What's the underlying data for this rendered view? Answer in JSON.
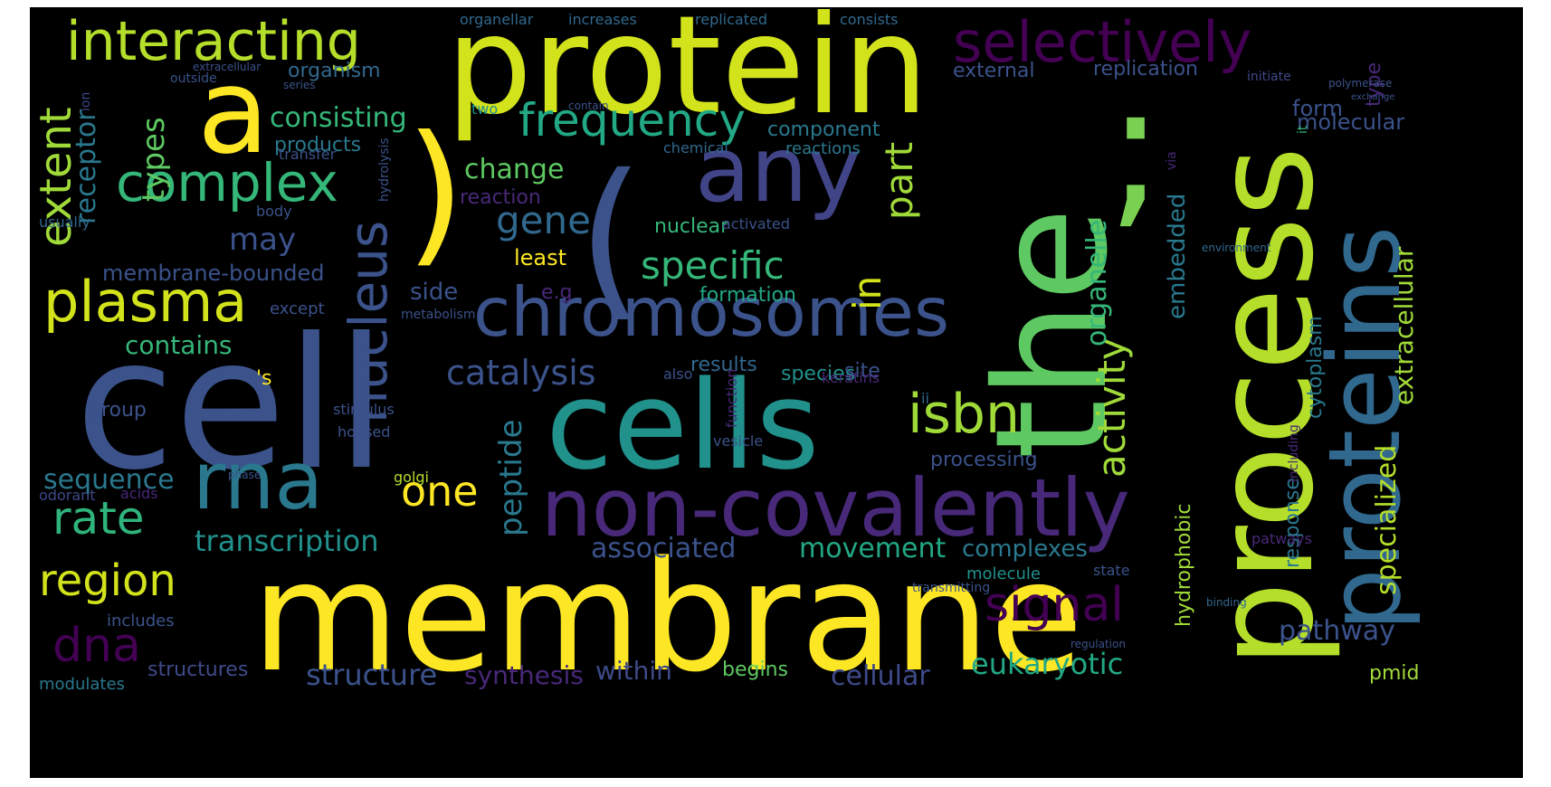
{
  "cloud": {
    "palette": {
      "yellow": "#FDE725",
      "lime": "#B5DE2B",
      "green": "#5EC962",
      "teal": "#21918C",
      "steel": "#3B528B",
      "indigo": "#443A83",
      "purple": "#440154"
    },
    "words": [
      {
        "text": "membrane",
        "color": "#FDE725"
      },
      {
        "text": "cell",
        "color": "#3B528B"
      },
      {
        "text": "protein",
        "color": "#D2E21B"
      },
      {
        "text": "process",
        "color": "#B5DE2B"
      },
      {
        "text": "the",
        "color": "#5EC962"
      },
      {
        "text": "cells",
        "color": "#21918C"
      },
      {
        "text": "proteins",
        "color": "#31688E"
      },
      {
        "text": "non-covalently",
        "color": "#482878"
      },
      {
        "text": "chromosomes",
        "color": "#3B528B"
      },
      {
        "text": "a",
        "color": "#FDE725"
      },
      {
        "text": "any",
        "color": "#414487"
      },
      {
        "text": "rna",
        "color": "#2A788E"
      },
      {
        "text": "selectively",
        "color": "#440154"
      },
      {
        "text": "interacting",
        "color": "#B5DE2B"
      },
      {
        "text": "plasma",
        "color": "#D2E21B"
      },
      {
        "text": "complex",
        "color": "#35B779"
      },
      {
        "text": "nucleus",
        "color": "#3B528B"
      },
      {
        "text": "(",
        "color": "#3B528B"
      },
      {
        "text": ")",
        "color": "#FDE725"
      },
      {
        "text": ";",
        "color": "#7AD151"
      },
      {
        "text": "isbn",
        "color": "#A0DA39"
      },
      {
        "text": "frequency",
        "color": "#22A884"
      },
      {
        "text": "signal",
        "color": "#440154"
      },
      {
        "text": "dna",
        "color": "#440154"
      },
      {
        "text": "region",
        "color": "#D2E21B"
      },
      {
        "text": "rate",
        "color": "#2FB47C"
      },
      {
        "text": "one",
        "color": "#FDE725"
      },
      {
        "text": "extent",
        "color": "#A0DA39"
      },
      {
        "text": "gene",
        "color": "#31688E"
      },
      {
        "text": "specific",
        "color": "#35B779"
      },
      {
        "text": "catalysis",
        "color": "#3B528B"
      },
      {
        "text": "activity",
        "color": "#A0DA39"
      },
      {
        "text": "part",
        "color": "#A0DA39"
      },
      {
        "text": "in",
        "color": "#D2E21B"
      },
      {
        "text": "transcription",
        "color": "#21918C"
      },
      {
        "text": "associated",
        "color": "#3B528B"
      },
      {
        "text": "movement",
        "color": "#22A884"
      },
      {
        "text": "complexes",
        "color": "#2A788E"
      },
      {
        "text": "structure",
        "color": "#3B528B"
      },
      {
        "text": "synthesis",
        "color": "#482878"
      },
      {
        "text": "within",
        "color": "#3E4A89"
      },
      {
        "text": "cellular",
        "color": "#3E4A89"
      },
      {
        "text": "eukaryotic",
        "color": "#22A884"
      },
      {
        "text": "pathway",
        "color": "#3B528B"
      },
      {
        "text": "peptide",
        "color": "#2A788E"
      },
      {
        "text": "sequence",
        "color": "#2A788E"
      },
      {
        "text": "change",
        "color": "#5EC962"
      },
      {
        "text": "may",
        "color": "#3B528B"
      },
      {
        "text": "consisting",
        "color": "#35B779"
      },
      {
        "text": "types",
        "color": "#5EC962"
      },
      {
        "text": "receptor",
        "color": "#2A788E"
      },
      {
        "text": "membrane-bounded",
        "color": "#3B528B"
      },
      {
        "text": "contains",
        "color": "#35B779"
      },
      {
        "text": "products",
        "color": "#2A788E"
      },
      {
        "text": "component",
        "color": "#2A788E"
      },
      {
        "text": "reactions",
        "color": "#2A788E"
      },
      {
        "text": "formation",
        "color": "#22A884"
      },
      {
        "text": "nuclear",
        "color": "#35B779"
      },
      {
        "text": "least",
        "color": "#FDE725"
      },
      {
        "text": "side",
        "color": "#3B528B"
      },
      {
        "text": "reaction",
        "color": "#482878"
      },
      {
        "text": "organelle",
        "color": "#35B779"
      },
      {
        "text": "embedded",
        "color": "#2A788E"
      },
      {
        "text": "specialized",
        "color": "#B5DE2B"
      },
      {
        "text": "extracellular",
        "color": "#A0DA39"
      },
      {
        "text": "response",
        "color": "#2A788E"
      },
      {
        "text": "hydrophobic",
        "color": "#A0DA39"
      },
      {
        "text": "cytoplasm",
        "color": "#2A788E"
      },
      {
        "text": "molecular",
        "color": "#3B528B"
      },
      {
        "text": "form",
        "color": "#3B528B"
      },
      {
        "text": "type",
        "color": "#482878"
      },
      {
        "text": "external",
        "color": "#3B528B"
      },
      {
        "text": "replication",
        "color": "#3B528B"
      },
      {
        "text": "organism",
        "color": "#31688E"
      },
      {
        "text": "processing",
        "color": "#3B528B"
      },
      {
        "text": "species",
        "color": "#21918C"
      },
      {
        "text": "results",
        "color": "#31688E"
      },
      {
        "text": "site",
        "color": "#3B528B"
      },
      {
        "text": "begins",
        "color": "#5EC962"
      },
      {
        "text": "group",
        "color": "#3B528B"
      },
      {
        "text": "structures",
        "color": "#3E4A89"
      },
      {
        "text": "modulates",
        "color": "#2A788E"
      },
      {
        "text": "includes",
        "color": "#3B528B"
      },
      {
        "text": "pmid",
        "color": "#A0DA39"
      },
      {
        "text": "molecule",
        "color": "#21918C"
      },
      {
        "text": "golgi",
        "color": "#B5DE2B"
      },
      {
        "text": "organellar",
        "color": "#31688E"
      },
      {
        "text": "increases",
        "color": "#31688E"
      },
      {
        "text": "replicated",
        "color": "#31688E"
      },
      {
        "text": "consists",
        "color": "#31688E"
      },
      {
        "text": "two",
        "color": "#21918C"
      },
      {
        "text": "transfer",
        "color": "#3B528B"
      },
      {
        "text": "chemical",
        "color": "#31688E"
      },
      {
        "text": "keratins",
        "color": "#482878"
      },
      {
        "text": "also",
        "color": "#3B528B"
      },
      {
        "text": "activated",
        "color": "#3B528B"
      },
      {
        "text": "stimulus",
        "color": "#3B528B"
      },
      {
        "text": "housed",
        "color": "#3B528B"
      },
      {
        "text": "acids",
        "color": "#482878"
      },
      {
        "text": "odorant",
        "color": "#3E4A89"
      },
      {
        "text": "body",
        "color": "#3B528B"
      },
      {
        "text": "usually",
        "color": "#31688E"
      },
      {
        "text": "except",
        "color": "#3B528B"
      },
      {
        "text": "e.g",
        "color": "#482878"
      },
      {
        "text": "'s",
        "color": "#FDE725"
      },
      {
        "text": "ii",
        "color": "#31688E"
      },
      {
        "text": "patways",
        "color": "#482878"
      },
      {
        "text": "state",
        "color": "#3B528B"
      },
      {
        "text": "it",
        "color": "#35B779"
      },
      {
        "text": "via",
        "color": "#482878"
      },
      {
        "text": "initiate",
        "color": "#3E4A89"
      },
      {
        "text": "outside",
        "color": "#3B528B"
      },
      {
        "text": "series",
        "color": "#3B528B"
      },
      {
        "text": "extracellular",
        "color": "#3B528B"
      },
      {
        "text": "metabolism",
        "color": "#3B528B"
      },
      {
        "text": "function",
        "color": "#482878"
      },
      {
        "text": "vesicle",
        "color": "#3B528B"
      },
      {
        "text": "ion",
        "color": "#3E4A89"
      },
      {
        "text": "hydrolysis",
        "color": "#3B528B"
      },
      {
        "text": "including",
        "color": "#482878"
      },
      {
        "text": "transmitting",
        "color": "#3B528B"
      },
      {
        "text": "binding",
        "color": "#31688E"
      },
      {
        "text": "regulation",
        "color": "#3B528B"
      },
      {
        "text": "environment",
        "color": "#31688E"
      },
      {
        "text": "polymerase",
        "color": "#3B528B"
      },
      {
        "text": "exchange",
        "color": "#3B528B"
      },
      {
        "text": "contain",
        "color": "#3B528B"
      },
      {
        "text": "phase",
        "color": "#3B528B"
      }
    ]
  }
}
